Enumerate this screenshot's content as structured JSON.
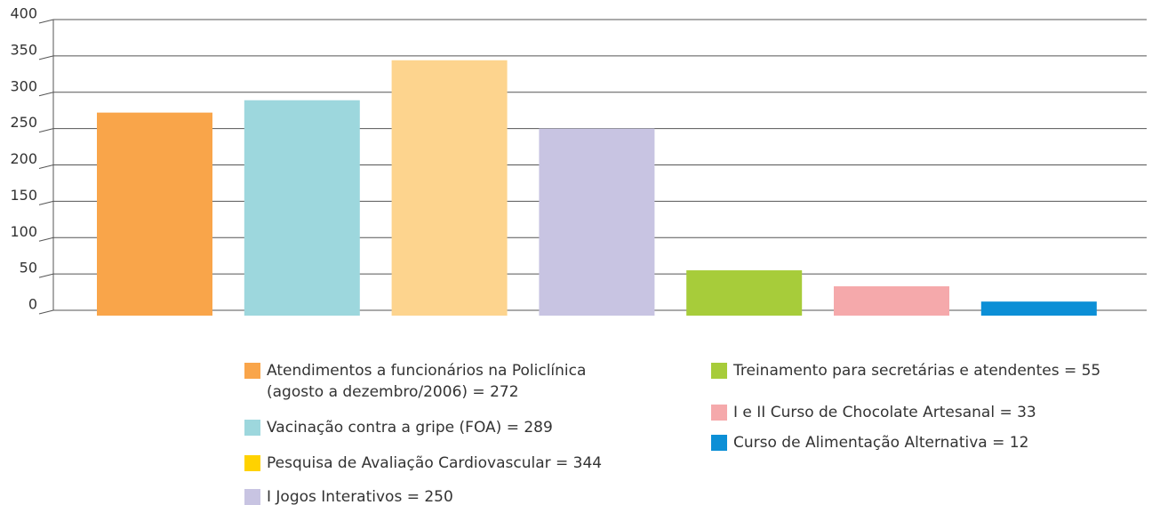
{
  "chart_data": {
    "type": "bar",
    "series": [
      {
        "name": [
          "Atendimentos a funcionários na Policlínica",
          "(agosto a dezembro/2006) = 272"
        ],
        "color": "#f9a54a",
        "swatch": "#f9a54a",
        "values": [
          272
        ]
      },
      {
        "name": "Vacinação contra a gripe (FOA) = 289",
        "color": "#9dd7dd",
        "swatch": "#9dd7dd",
        "values": [
          289
        ]
      },
      {
        "name": "Pesquisa de Avaliação Cardiovascular = 344",
        "color": "#fdd48e",
        "swatch": "#ffd200",
        "values": [
          344
        ]
      },
      {
        "name": "I Jogos Interativos = 250",
        "color": "#c8c4e2",
        "swatch": "#c8c4e2",
        "values": [
          250
        ]
      },
      {
        "name": "Treinamento para secretárias e atendentes = 55",
        "color": "#a7cc3a",
        "swatch": "#a7cc3a",
        "values": [
          55
        ]
      },
      {
        "name": "I e II Curso de Chocolate Artesanal = 33",
        "color": "#f5a9ab",
        "swatch": "#f5a9ab",
        "values": [
          33
        ]
      },
      {
        "name": "Curso de Alimentação Alternativa = 12",
        "color": "#0c8fd6",
        "swatch": "#0c8fd6",
        "values": [
          12
        ]
      }
    ],
    "ylim": [
      0,
      400
    ],
    "yticks": [
      0,
      50,
      100,
      150,
      200,
      250,
      300,
      350,
      400
    ],
    "grid": true
  }
}
